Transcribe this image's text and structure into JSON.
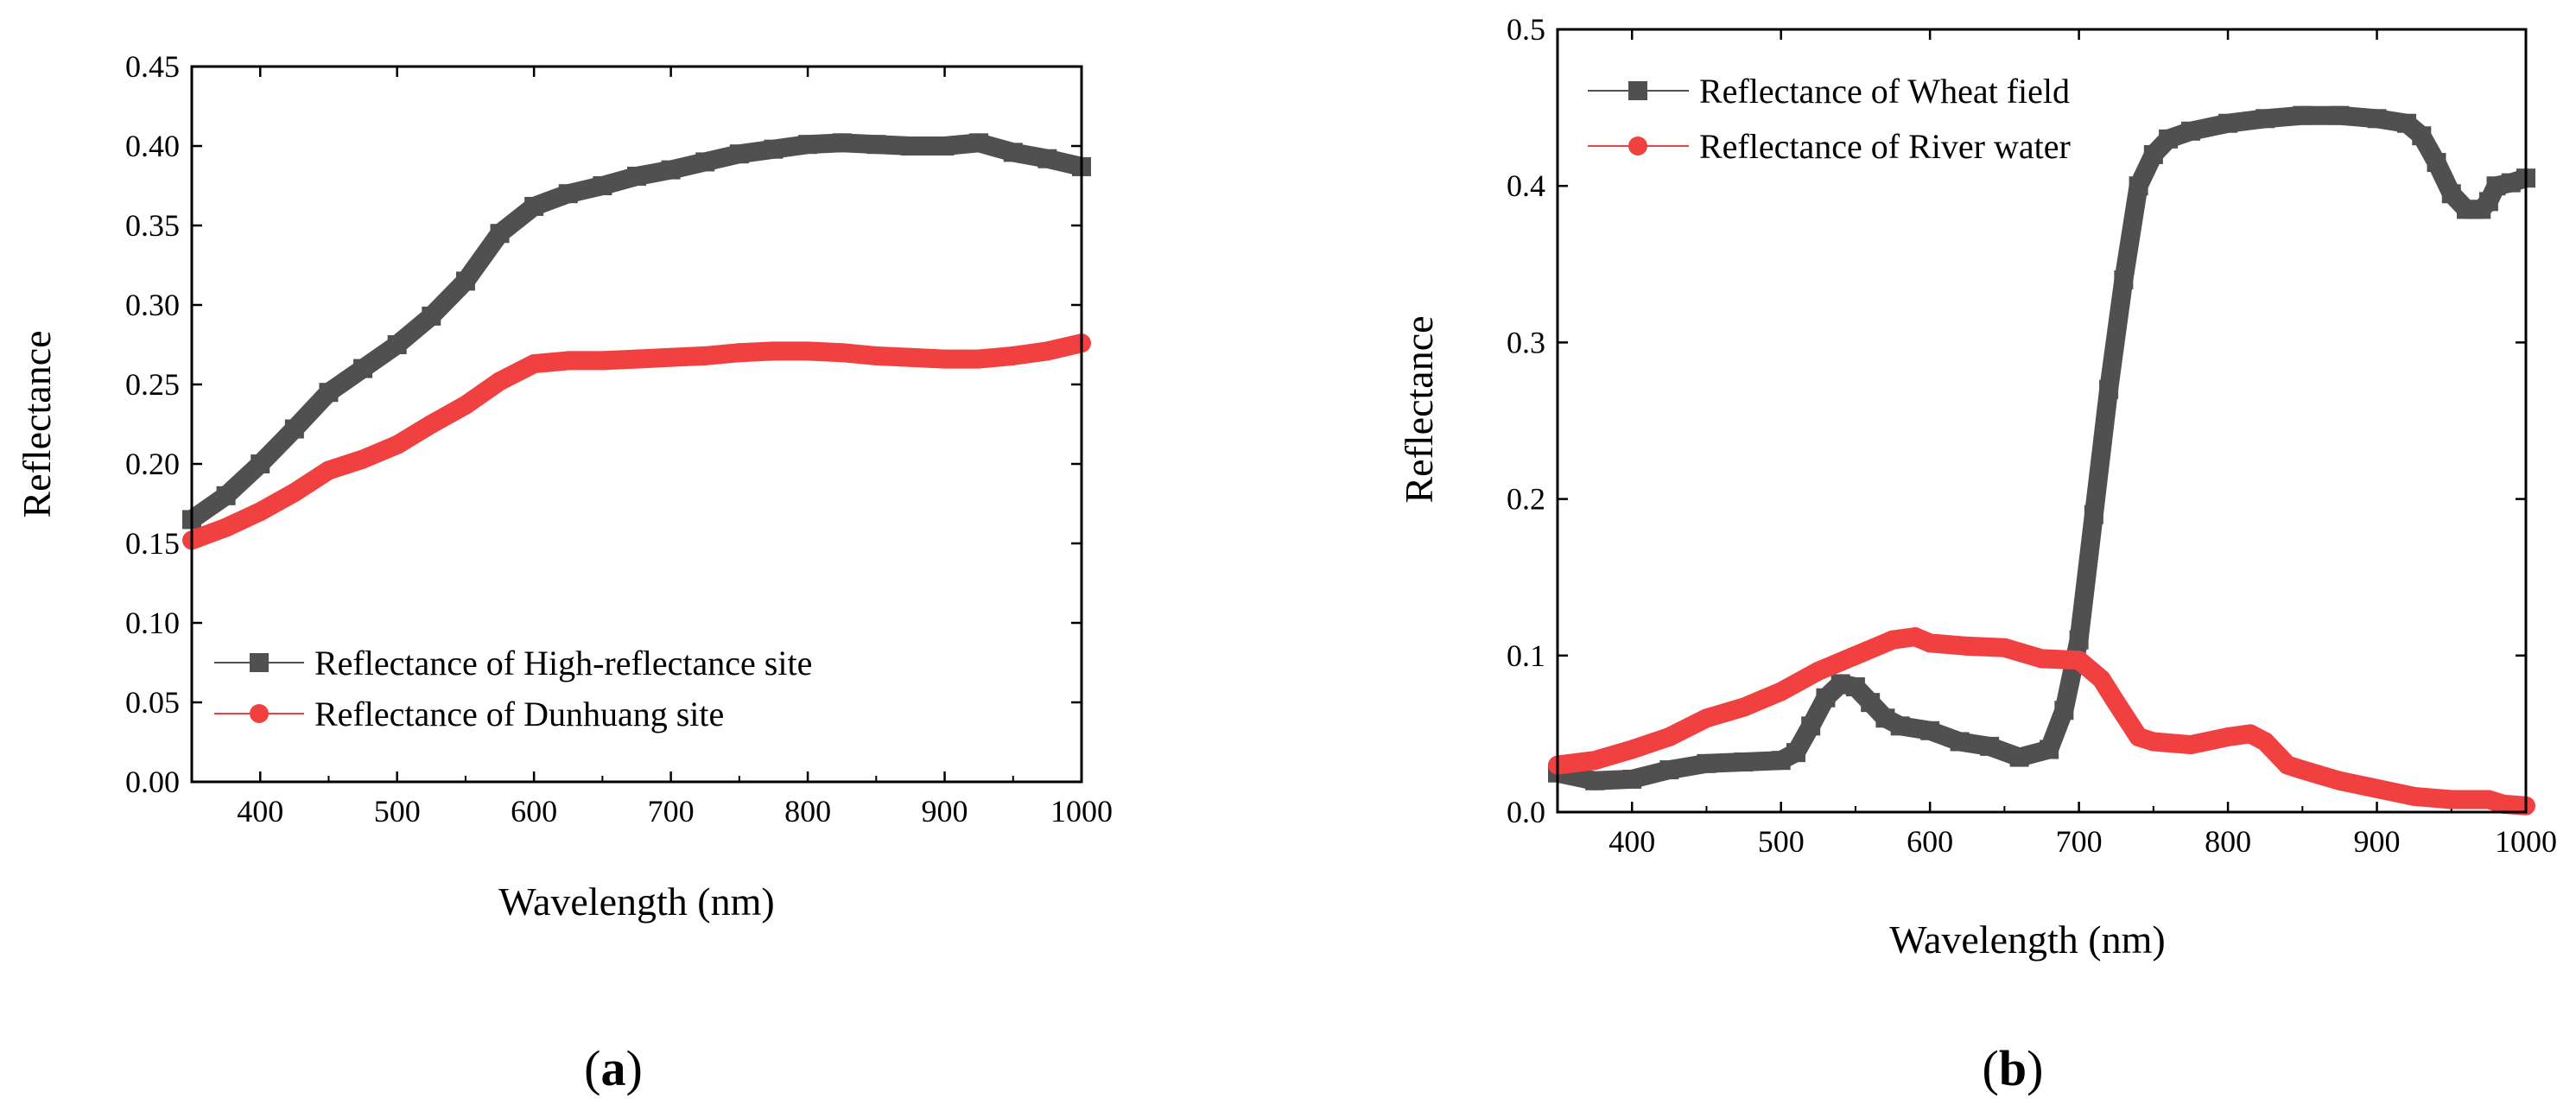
{
  "chart_data": [
    {
      "panel_label": "a",
      "type": "scatter",
      "title": "",
      "xlabel": "Wavelength (nm)",
      "ylabel": "Reflectance",
      "xlim": [
        350,
        1000
      ],
      "ylim": [
        0,
        0.45
      ],
      "xticks": [
        400,
        500,
        600,
        700,
        800,
        900,
        1000
      ],
      "xtick_labels": [
        "400",
        "500",
        "600",
        "700",
        "800",
        "900",
        "1000"
      ],
      "yticks": [
        0,
        0.05,
        0.1,
        0.15,
        0.2,
        0.25,
        0.3,
        0.35,
        0.4,
        0.45
      ],
      "ytick_labels": [
        "0.00",
        "0.05",
        "0.10",
        "0.15",
        "0.20",
        "0.25",
        "0.30",
        "0.35",
        "0.40",
        "0.45"
      ],
      "legend_position": "bottom-left",
      "series": [
        {
          "name": "Reflectance of High-reflectance site",
          "color": "#505050",
          "marker": "square",
          "x": [
            350,
            375,
            400,
            425,
            450,
            475,
            500,
            525,
            550,
            575,
            600,
            625,
            650,
            675,
            700,
            725,
            750,
            775,
            800,
            825,
            850,
            875,
            900,
            925,
            950,
            975,
            1000
          ],
          "y": [
            0.165,
            0.18,
            0.2,
            0.222,
            0.245,
            0.26,
            0.275,
            0.293,
            0.315,
            0.345,
            0.362,
            0.37,
            0.375,
            0.381,
            0.385,
            0.39,
            0.395,
            0.398,
            0.401,
            0.402,
            0.401,
            0.4,
            0.4,
            0.402,
            0.396,
            0.392,
            0.387
          ]
        },
        {
          "name": "Reflectance of Dunhuang site",
          "color": "#f04040",
          "marker": "circle",
          "x": [
            350,
            375,
            400,
            425,
            450,
            475,
            500,
            525,
            550,
            575,
            600,
            625,
            650,
            675,
            700,
            725,
            750,
            775,
            800,
            825,
            850,
            875,
            900,
            925,
            950,
            975,
            1000
          ],
          "y": [
            0.152,
            0.16,
            0.17,
            0.182,
            0.196,
            0.203,
            0.212,
            0.225,
            0.237,
            0.252,
            0.263,
            0.265,
            0.265,
            0.266,
            0.267,
            0.268,
            0.27,
            0.271,
            0.271,
            0.27,
            0.268,
            0.267,
            0.266,
            0.266,
            0.268,
            0.271,
            0.276
          ]
        }
      ]
    },
    {
      "panel_label": "b",
      "type": "scatter",
      "title": "",
      "xlabel": "Wavelength (nm)",
      "ylabel": "Reflectance",
      "xlim": [
        350,
        1000
      ],
      "ylim": [
        0,
        0.5
      ],
      "xticks": [
        400,
        500,
        600,
        700,
        800,
        900,
        1000
      ],
      "xtick_labels": [
        "400",
        "500",
        "600",
        "700",
        "800",
        "900",
        "1000"
      ],
      "yticks": [
        0,
        0.1,
        0.2,
        0.3,
        0.4,
        0.5
      ],
      "ytick_labels": [
        "0.0",
        "0.1",
        "0.2",
        "0.3",
        "0.4",
        "0.5"
      ],
      "legend_position": "top-left",
      "series": [
        {
          "name": "Reflectance of Wheat field",
          "color": "#505050",
          "marker": "square",
          "x": [
            350,
            375,
            400,
            425,
            450,
            475,
            500,
            510,
            520,
            530,
            540,
            550,
            560,
            570,
            580,
            600,
            620,
            640,
            660,
            680,
            690,
            700,
            710,
            720,
            730,
            740,
            750,
            760,
            775,
            800,
            825,
            850,
            875,
            900,
            920,
            930,
            940,
            950,
            960,
            970,
            975,
            980,
            990,
            1000
          ],
          "y": [
            0.025,
            0.02,
            0.021,
            0.027,
            0.031,
            0.032,
            0.033,
            0.038,
            0.055,
            0.073,
            0.082,
            0.08,
            0.07,
            0.06,
            0.055,
            0.052,
            0.045,
            0.042,
            0.035,
            0.04,
            0.065,
            0.11,
            0.19,
            0.27,
            0.34,
            0.4,
            0.42,
            0.43,
            0.435,
            0.44,
            0.443,
            0.445,
            0.445,
            0.443,
            0.44,
            0.432,
            0.415,
            0.395,
            0.385,
            0.385,
            0.39,
            0.4,
            0.402,
            0.405
          ]
        },
        {
          "name": "Reflectance of River water",
          "color": "#f04040",
          "marker": "circle",
          "x": [
            350,
            375,
            400,
            425,
            450,
            475,
            500,
            525,
            550,
            575,
            590,
            600,
            625,
            650,
            675,
            700,
            715,
            725,
            740,
            750,
            775,
            800,
            815,
            825,
            840,
            850,
            875,
            900,
            925,
            950,
            975,
            985,
            1000
          ],
          "y": [
            0.03,
            0.033,
            0.04,
            0.048,
            0.06,
            0.067,
            0.077,
            0.09,
            0.1,
            0.11,
            0.112,
            0.108,
            0.106,
            0.105,
            0.098,
            0.097,
            0.085,
            0.07,
            0.048,
            0.045,
            0.043,
            0.048,
            0.05,
            0.045,
            0.03,
            0.027,
            0.02,
            0.015,
            0.01,
            0.008,
            0.008,
            0.005,
            0.004
          ]
        }
      ]
    }
  ],
  "captions": {
    "a": {
      "open": "(",
      "letter": "a",
      "close": ")"
    },
    "b": {
      "open": "(",
      "letter": "b",
      "close": ")"
    }
  }
}
